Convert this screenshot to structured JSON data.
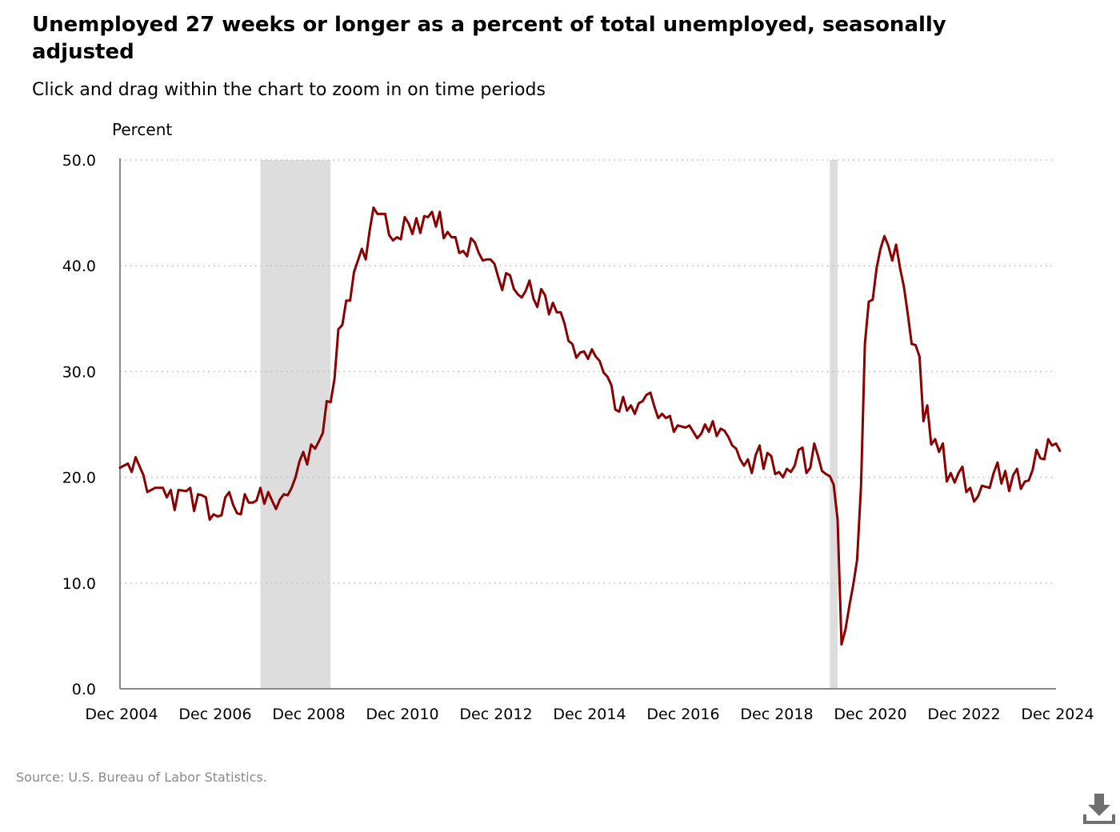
{
  "title": "Unemployed 27 weeks or longer as a percent of total unemployed, seasonally adjusted",
  "subtitle": "Click and drag within the chart to zoom in on time periods",
  "source": "Source: U.S. Bureau of Labor Statistics.",
  "download_icon": "download-icon",
  "colors": {
    "line": "#8b0000",
    "recession": "#dddddd",
    "grid": "#bbbbbb",
    "axis": "#888888"
  },
  "chart_data": {
    "type": "line",
    "title": "Unemployed 27 weeks or longer as a percent of total unemployed, seasonally adjusted",
    "ylabel": "Percent",
    "xlabel": "",
    "ylim": [
      0,
      50
    ],
    "yticks": [
      "0.0",
      "10.0",
      "20.0",
      "30.0",
      "40.0",
      "50.0"
    ],
    "xlim": [
      "Dec 2004",
      "Dec 2024"
    ],
    "xticks": [
      "Dec 2004",
      "Dec 2006",
      "Dec 2008",
      "Dec 2010",
      "Dec 2012",
      "Dec 2014",
      "Dec 2016",
      "Dec 2018",
      "Dec 2020",
      "Dec 2022",
      "Dec 2024"
    ],
    "grid": "horizontal dotted",
    "recessions": [
      {
        "start": "Dec 2007",
        "end": "Jun 2009"
      },
      {
        "start": "Feb 2020",
        "end": "Apr 2020"
      }
    ],
    "series": [
      {
        "points": [
          [
            "Dec 2004",
            20.9
          ],
          [
            "Feb 2005",
            21.3
          ],
          [
            "Mar 2005",
            20.5
          ],
          [
            "Apr 2005",
            21.9
          ],
          [
            "Jun 2005",
            20.2
          ],
          [
            "Jul 2005",
            18.6
          ],
          [
            "Sep 2005",
            19.0
          ],
          [
            "Nov 2005",
            19.0
          ],
          [
            "Dec 2005",
            18.1
          ],
          [
            "Jan 2006",
            18.8
          ],
          [
            "Feb 2006",
            16.9
          ],
          [
            "Mar 2006",
            18.8
          ],
          [
            "May 2006",
            18.7
          ],
          [
            "Jun 2006",
            19.0
          ],
          [
            "Jul 2006",
            16.8
          ],
          [
            "Aug 2006",
            18.4
          ],
          [
            "Sep 2006",
            18.3
          ],
          [
            "Oct 2006",
            18.1
          ],
          [
            "Nov 2006",
            16.0
          ],
          [
            "Dec 2006",
            16.5
          ],
          [
            "Jan 2007",
            16.3
          ],
          [
            "Feb 2007",
            16.4
          ],
          [
            "Mar 2007",
            18.1
          ],
          [
            "Apr 2007",
            18.6
          ],
          [
            "May 2007",
            17.4
          ],
          [
            "Jun 2007",
            16.6
          ],
          [
            "Jul 2007",
            16.5
          ],
          [
            "Aug 2007",
            18.4
          ],
          [
            "Sep 2007",
            17.6
          ],
          [
            "Oct 2007",
            17.6
          ],
          [
            "Nov 2007",
            17.8
          ],
          [
            "Dec 2007",
            19.0
          ],
          [
            "Jan 2008",
            17.5
          ],
          [
            "Feb 2008",
            18.6
          ],
          [
            "Mar 2008",
            17.8
          ],
          [
            "Apr 2008",
            17.0
          ],
          [
            "May 2008",
            17.9
          ],
          [
            "Jun 2008",
            18.4
          ],
          [
            "Jul 2008",
            18.3
          ],
          [
            "Aug 2008",
            19.0
          ],
          [
            "Sep 2008",
            20.0
          ],
          [
            "Oct 2008",
            21.5
          ],
          [
            "Nov 2008",
            22.4
          ],
          [
            "Dec 2008",
            21.2
          ],
          [
            "Jan 2009",
            23.1
          ],
          [
            "Feb 2009",
            22.7
          ],
          [
            "Mar 2009",
            23.4
          ],
          [
            "Apr 2009",
            24.2
          ],
          [
            "May 2009",
            27.2
          ],
          [
            "Jun 2009",
            27.1
          ],
          [
            "Jul 2009",
            29.3
          ],
          [
            "Aug 2009",
            34.0
          ],
          [
            "Sep 2009",
            34.4
          ],
          [
            "Oct 2009",
            36.7
          ],
          [
            "Nov 2009",
            36.7
          ],
          [
            "Dec 2009",
            39.4
          ],
          [
            "Jan 2010",
            40.5
          ],
          [
            "Feb 2010",
            41.6
          ],
          [
            "Mar 2010",
            40.6
          ],
          [
            "Apr 2010",
            43.3
          ],
          [
            "May 2010",
            45.5
          ],
          [
            "Jun 2010",
            44.9
          ],
          [
            "Jul 2010",
            44.9
          ],
          [
            "Aug 2010",
            44.9
          ],
          [
            "Sep 2010",
            42.9
          ],
          [
            "Oct 2010",
            42.4
          ],
          [
            "Nov 2010",
            42.7
          ],
          [
            "Dec 2010",
            42.5
          ],
          [
            "Jan 2011",
            44.6
          ],
          [
            "Feb 2011",
            44.0
          ],
          [
            "Mar 2011",
            43.0
          ],
          [
            "Apr 2011",
            44.5
          ],
          [
            "May 2011",
            43.1
          ],
          [
            "Jun 2011",
            44.7
          ],
          [
            "Jul 2011",
            44.6
          ],
          [
            "Aug 2011",
            45.1
          ],
          [
            "Sep 2011",
            43.7
          ],
          [
            "Oct 2011",
            45.1
          ],
          [
            "Nov 2011",
            42.6
          ],
          [
            "Dec 2011",
            43.2
          ],
          [
            "Jan 2012",
            42.7
          ],
          [
            "Feb 2012",
            42.7
          ],
          [
            "Mar 2012",
            41.2
          ],
          [
            "Apr 2012",
            41.4
          ],
          [
            "May 2012",
            40.9
          ],
          [
            "Jun 2012",
            42.6
          ],
          [
            "Jul 2012",
            42.2
          ],
          [
            "Aug 2012",
            41.2
          ],
          [
            "Sep 2012",
            40.5
          ],
          [
            "Oct 2012",
            40.6
          ],
          [
            "Nov 2012",
            40.6
          ],
          [
            "Dec 2012",
            40.2
          ],
          [
            "Jan 2013",
            38.9
          ],
          [
            "Feb 2013",
            37.7
          ],
          [
            "Mar 2013",
            39.3
          ],
          [
            "Apr 2013",
            39.1
          ],
          [
            "May 2013",
            37.8
          ],
          [
            "Jun 2013",
            37.3
          ],
          [
            "Jul 2013",
            37.0
          ],
          [
            "Aug 2013",
            37.6
          ],
          [
            "Sep 2013",
            38.6
          ],
          [
            "Oct 2013",
            36.9
          ],
          [
            "Nov 2013",
            36.1
          ],
          [
            "Dec 2013",
            37.8
          ],
          [
            "Jan 2014",
            37.2
          ],
          [
            "Feb 2014",
            35.4
          ],
          [
            "Mar 2014",
            36.5
          ],
          [
            "Apr 2014",
            35.6
          ],
          [
            "May 2014",
            35.6
          ],
          [
            "Jun 2014",
            34.5
          ],
          [
            "Jul 2014",
            32.9
          ],
          [
            "Aug 2014",
            32.6
          ],
          [
            "Sep 2014",
            31.3
          ],
          [
            "Oct 2014",
            31.8
          ],
          [
            "Nov 2014",
            31.9
          ],
          [
            "Dec 2014",
            31.2
          ],
          [
            "Jan 2015",
            32.1
          ],
          [
            "Feb 2015",
            31.4
          ],
          [
            "Mar 2015",
            31.0
          ],
          [
            "Apr 2015",
            29.9
          ],
          [
            "May 2015",
            29.5
          ],
          [
            "Jun 2015",
            28.7
          ],
          [
            "Jul 2015",
            26.4
          ],
          [
            "Aug 2015",
            26.2
          ],
          [
            "Sep 2015",
            27.6
          ],
          [
            "Oct 2015",
            26.3
          ],
          [
            "Nov 2015",
            26.8
          ],
          [
            "Dec 2015",
            26.0
          ],
          [
            "Jan 2016",
            27.0
          ],
          [
            "Feb 2016",
            27.2
          ],
          [
            "Mar 2016",
            27.8
          ],
          [
            "Apr 2016",
            28.0
          ],
          [
            "May 2016",
            26.7
          ],
          [
            "Jun 2016",
            25.6
          ],
          [
            "Jul 2016",
            26.0
          ],
          [
            "Aug 2016",
            25.6
          ],
          [
            "Sep 2016",
            25.8
          ],
          [
            "Oct 2016",
            24.3
          ],
          [
            "Nov 2016",
            24.9
          ],
          [
            "Dec 2016",
            24.8
          ],
          [
            "Jan 2017",
            24.7
          ],
          [
            "Feb 2017",
            24.9
          ],
          [
            "Mar 2017",
            24.3
          ],
          [
            "Apr 2017",
            23.7
          ],
          [
            "May 2017",
            24.1
          ],
          [
            "Jun 2017",
            25.0
          ],
          [
            "Jul 2017",
            24.3
          ],
          [
            "Aug 2017",
            25.3
          ],
          [
            "Sep 2017",
            23.9
          ],
          [
            "Oct 2017",
            24.6
          ],
          [
            "Nov 2017",
            24.4
          ],
          [
            "Dec 2017",
            23.8
          ],
          [
            "Jan 2018",
            23.0
          ],
          [
            "Feb 2018",
            22.7
          ],
          [
            "Mar 2018",
            21.7
          ],
          [
            "Apr 2018",
            21.1
          ],
          [
            "May 2018",
            21.7
          ],
          [
            "Jun 2018",
            20.4
          ],
          [
            "Jul 2018",
            22.1
          ],
          [
            "Aug 2018",
            23.0
          ],
          [
            "Sep 2018",
            20.8
          ],
          [
            "Oct 2018",
            22.3
          ],
          [
            "Nov 2018",
            22.0
          ],
          [
            "Dec 2018",
            20.3
          ],
          [
            "Jan 2019",
            20.5
          ],
          [
            "Feb 2019",
            20.0
          ],
          [
            "Mar 2019",
            20.8
          ],
          [
            "Apr 2019",
            20.5
          ],
          [
            "May 2019",
            21.1
          ],
          [
            "Jun 2019",
            22.6
          ],
          [
            "Jul 2019",
            22.8
          ],
          [
            "Aug 2019",
            20.4
          ],
          [
            "Sep 2019",
            20.9
          ],
          [
            "Oct 2019",
            23.2
          ],
          [
            "Nov 2019",
            22.0
          ],
          [
            "Dec 2019",
            20.6
          ],
          [
            "Jan 2020",
            20.3
          ],
          [
            "Feb 2020",
            20.1
          ],
          [
            "Mar 2020",
            19.3
          ],
          [
            "Apr 2020",
            16.0
          ],
          [
            "May 2020",
            4.2
          ],
          [
            "Jun 2020",
            5.6
          ],
          [
            "Jul 2020",
            7.8
          ],
          [
            "Aug 2020",
            9.8
          ],
          [
            "Sep 2020",
            12.2
          ],
          [
            "Oct 2020",
            19.2
          ],
          [
            "Nov 2020",
            32.6
          ],
          [
            "Dec 2020",
            36.6
          ],
          [
            "Jan 2021",
            36.8
          ],
          [
            "Feb 2021",
            39.8
          ],
          [
            "Mar 2021",
            41.6
          ],
          [
            "Apr 2021",
            42.8
          ],
          [
            "May 2021",
            41.9
          ],
          [
            "Jun 2021",
            40.5
          ],
          [
            "Jul 2021",
            42.0
          ],
          [
            "Aug 2021",
            39.8
          ],
          [
            "Sep 2021",
            38.0
          ],
          [
            "Oct 2021",
            35.4
          ],
          [
            "Nov 2021",
            32.6
          ],
          [
            "Dec 2021",
            32.5
          ],
          [
            "Jan 2022",
            31.4
          ],
          [
            "Feb 2022",
            25.3
          ],
          [
            "Mar 2022",
            26.8
          ],
          [
            "Apr 2022",
            23.1
          ],
          [
            "May 2022",
            23.6
          ],
          [
            "Jun 2022",
            22.4
          ],
          [
            "Jul 2022",
            23.2
          ],
          [
            "Aug 2022",
            19.6
          ],
          [
            "Sep 2022",
            20.4
          ],
          [
            "Oct 2022",
            19.5
          ],
          [
            "Nov 2022",
            20.4
          ],
          [
            "Dec 2022",
            21.0
          ],
          [
            "Jan 2023",
            18.6
          ],
          [
            "Feb 2023",
            19.0
          ],
          [
            "Mar 2023",
            17.7
          ],
          [
            "Apr 2023",
            18.2
          ],
          [
            "May 2023",
            19.2
          ],
          [
            "Jun 2023",
            19.1
          ],
          [
            "Jul 2023",
            19.0
          ],
          [
            "Aug 2023",
            20.4
          ],
          [
            "Sep 2023",
            21.4
          ],
          [
            "Oct 2023",
            19.4
          ],
          [
            "Nov 2023",
            20.6
          ],
          [
            "Dec 2023",
            18.7
          ],
          [
            "Jan 2024",
            20.2
          ],
          [
            "Feb 2024",
            20.8
          ],
          [
            "Mar 2024",
            18.9
          ],
          [
            "Apr 2024",
            19.6
          ],
          [
            "May 2024",
            19.7
          ],
          [
            "Jun 2024",
            20.7
          ],
          [
            "Jul 2024",
            22.6
          ],
          [
            "Aug 2024",
            21.8
          ],
          [
            "Sep 2024",
            21.7
          ],
          [
            "Oct 2024",
            23.6
          ],
          [
            "Nov 2024",
            23.0
          ],
          [
            "Dec 2024",
            23.2
          ],
          [
            "Jan 2025",
            22.5
          ]
        ]
      }
    ]
  }
}
